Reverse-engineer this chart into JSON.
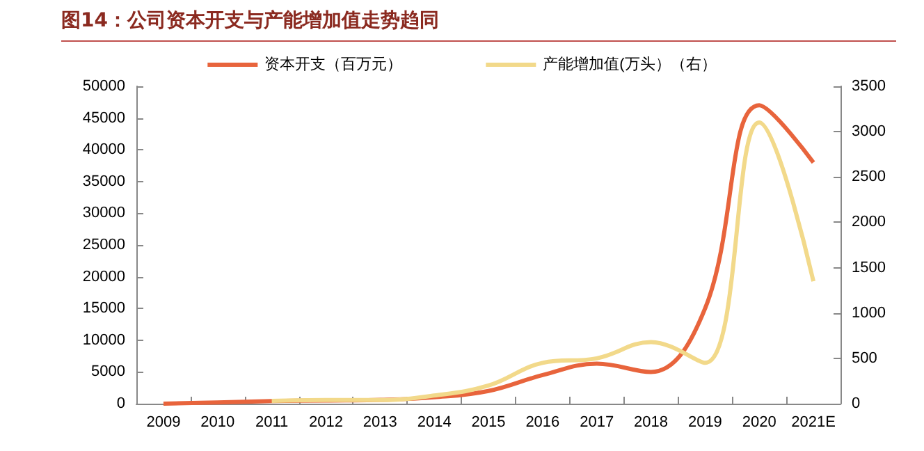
{
  "chart_data": {
    "type": "line",
    "title": "图14：公司资本开支与产能增加值走势趋同",
    "categories": [
      "2009",
      "2010",
      "2011",
      "2012",
      "2013",
      "2014",
      "2015",
      "2016",
      "2017",
      "2018",
      "2019",
      "2020",
      "2021E"
    ],
    "series": [
      {
        "name": "资本开支（百万元）",
        "color": "#e8643c",
        "values": [
          0,
          200,
          400,
          500,
          600,
          1000,
          2000,
          4500,
          6300,
          5000,
          15000,
          47000,
          38000
        ]
      },
      {
        "name": "产能增加值(万头）（右）",
        "color": "#f2d98a",
        "axis": "y2",
        "values": [
          null,
          null,
          30,
          40,
          40,
          90,
          200,
          450,
          500,
          680,
          450,
          3100,
          1350
        ]
      }
    ],
    "ylim": [
      0,
      50000
    ],
    "yticks": [
      0,
      5000,
      10000,
      15000,
      20000,
      25000,
      30000,
      35000,
      40000,
      45000,
      50000
    ],
    "y2lim": [
      0,
      3500
    ],
    "y2ticks": [
      0,
      500,
      1000,
      1500,
      2000,
      2500,
      3000,
      3500
    ],
    "legend": "top",
    "grid": false,
    "marker": "none",
    "line_style": "solid"
  }
}
